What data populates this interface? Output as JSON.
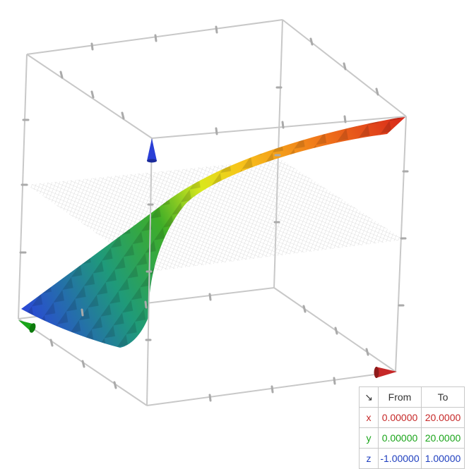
{
  "range_table": {
    "corner_symbol": "↘",
    "headers": {
      "from": "From",
      "to": "To"
    },
    "rows": {
      "x": {
        "axis": "x",
        "from": "0.00000",
        "to": "20.0000"
      },
      "y": {
        "axis": "y",
        "from": "0.00000",
        "to": "20.0000"
      },
      "z": {
        "axis": "z",
        "from": "-1.00000",
        "to": "1.00000"
      }
    }
  },
  "colors": {
    "x_axis": "#c62828",
    "y_axis": "#1aa51a",
    "z_axis": "#2a3fd6",
    "box_edges": "#c8c8c8",
    "plane_grid": "#d0d0d0"
  },
  "icons": {
    "x_axis_arrow": "red-cone-arrow",
    "y_axis_arrow": "green-cone-arrow",
    "z_axis_arrow": "blue-cone-arrow",
    "corner": "diagonal-arrow-icon"
  }
}
